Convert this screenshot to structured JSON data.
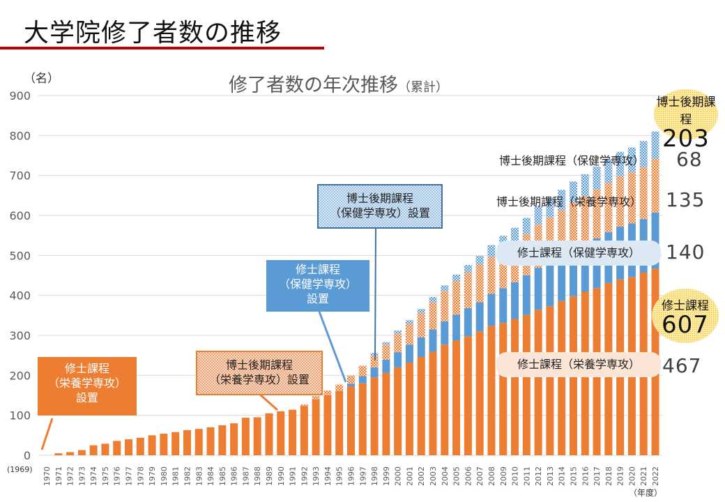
{
  "slide": {
    "title": "大学院修了者数の推移",
    "unit_label": "（名）",
    "year_unit": "（年度）",
    "base_year": "(1969)"
  },
  "annotations": {
    "establish_master_nutrition": [
      "修士課程",
      "（栄養学専攻）",
      "設置"
    ],
    "establish_doctor_nutrition": [
      "博士後期課程",
      "（栄養学専攻）設置"
    ],
    "establish_master_health": [
      "修士課程",
      "（保健学専攻）",
      "設置"
    ],
    "establish_doctor_health": [
      "博士後期課程",
      "（保健学専攻）設置"
    ],
    "doctor_total_label": "博士後期課程",
    "doctor_total_value": "203",
    "doctor_health_label": "博士後期課程（保健学専攻）",
    "doctor_health_value": "68",
    "doctor_nutrition_label": "博士後期課程（栄養学専攻）",
    "doctor_nutrition_value": "135",
    "master_health_label": "修士課程（保健学専攻）",
    "master_health_value": "140",
    "master_total_label": "修士課程",
    "master_total_value": "607",
    "master_nutrition_label": "修士課程（栄養学専攻）",
    "master_nutrition_value": "467"
  },
  "colors": {
    "master_nutrition": "#ed7d31",
    "master_health": "#5b9bd5",
    "doctor_nutrition": "#ed7d31",
    "doctor_health": "#5b9bd5",
    "title_rule": "#c00000",
    "gridline": "#d9d9d9"
  },
  "chart_data": {
    "type": "bar",
    "stacked": true,
    "title": "修了者数の年次推移",
    "subtitle": "（累計）",
    "xlabel": "（年度）",
    "ylabel": "（名）",
    "ylim": [
      0,
      900
    ],
    "yticks": [
      0,
      100,
      200,
      300,
      400,
      500,
      600,
      700,
      800,
      900
    ],
    "grid": true,
    "legend": "none (inline labels at right)",
    "categories": [
      "1970",
      "1971",
      "1972",
      "1973",
      "1974",
      "1975",
      "1976",
      "1977",
      "1978",
      "1979",
      "1980",
      "1981",
      "1982",
      "1983",
      "1984",
      "1985",
      "1986",
      "1987",
      "1988",
      "1989",
      "1990",
      "1991",
      "1992",
      "1993",
      "1994",
      "1995",
      "1996",
      "1997",
      "1998",
      "1999",
      "2000",
      "2001",
      "2002",
      "2003",
      "2004",
      "2005",
      "2006",
      "2007",
      "2008",
      "2009",
      "2010",
      "2011",
      "2012",
      "2013",
      "2014",
      "2015",
      "2016",
      "2017",
      "2018",
      "2019",
      "2020",
      "2021",
      "2022"
    ],
    "series": [
      {
        "name": "修士課程（栄養学専攻）",
        "pattern": "solid",
        "values": [
          0,
          5,
          8,
          13,
          25,
          29,
          36,
          40,
          44,
          50,
          54,
          58,
          63,
          66,
          70,
          75,
          80,
          94,
          95,
          105,
          110,
          114,
          123,
          140,
          150,
          161,
          172,
          180,
          195,
          206,
          220,
          232,
          246,
          259,
          277,
          287,
          298,
          310,
          324,
          331,
          341,
          351,
          364,
          373,
          386,
          398,
          409,
          418,
          431,
          440,
          446,
          457,
          467
        ]
      },
      {
        "name": "修士課程（保健学専攻）",
        "pattern": "solid",
        "values": [
          0,
          0,
          0,
          0,
          0,
          0,
          0,
          0,
          0,
          0,
          0,
          0,
          0,
          0,
          0,
          0,
          0,
          0,
          0,
          0,
          0,
          0,
          0,
          0,
          0,
          0,
          7,
          18,
          25,
          33,
          38,
          45,
          49,
          56,
          58,
          65,
          70,
          73,
          80,
          87,
          92,
          99,
          105,
          110,
          113,
          118,
          121,
          125,
          127,
          132,
          134,
          134,
          140
        ]
      },
      {
        "name": "博士後期課程（栄養学専攻）",
        "pattern": "checker",
        "values": [
          0,
          0,
          0,
          0,
          0,
          0,
          0,
          0,
          0,
          0,
          0,
          0,
          0,
          0,
          0,
          0,
          0,
          0,
          0,
          0,
          0,
          0,
          4,
          8,
          12,
          16,
          20,
          26,
          30,
          38,
          46,
          52,
          61,
          68,
          76,
          84,
          89,
          94,
          92,
          98,
          100,
          104,
          108,
          112,
          114,
          116,
          118,
          122,
          124,
          126,
          128,
          130,
          135
        ]
      },
      {
        "name": "博士後期課程（保健学専攻）",
        "pattern": "checker",
        "values": [
          0,
          0,
          0,
          0,
          0,
          0,
          0,
          0,
          0,
          0,
          0,
          0,
          0,
          0,
          0,
          0,
          0,
          0,
          0,
          0,
          0,
          0,
          0,
          0,
          0,
          0,
          0,
          0,
          6,
          6,
          8,
          9,
          10,
          13,
          14,
          16,
          19,
          22,
          30,
          33,
          36,
          40,
          46,
          49,
          51,
          53,
          55,
          57,
          59,
          61,
          62,
          65,
          68
        ]
      }
    ]
  }
}
